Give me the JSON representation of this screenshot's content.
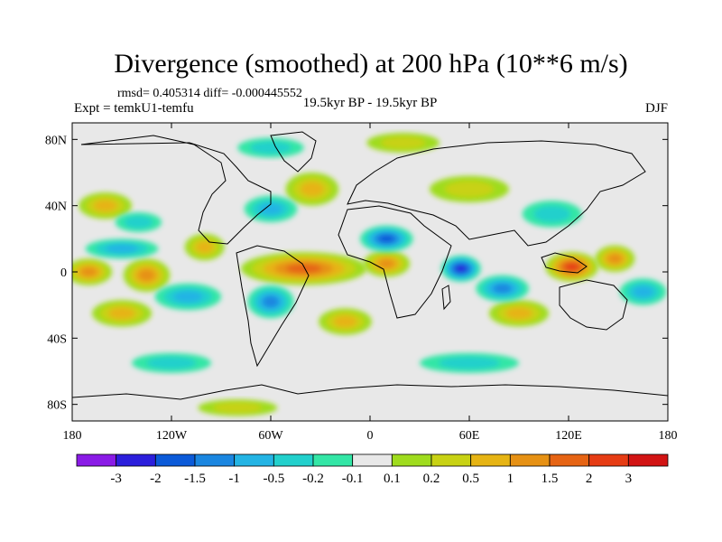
{
  "chart_data": {
    "type": "heatmap",
    "title": "Divergence (smoothed) at 200 hPa (10**6 m/s)",
    "stats": "rmsd= 0.405314 diff= -0.000445552",
    "experiment": "Expt = temkU1-temfu",
    "period": "19.5kyr BP - 19.5kyr BP",
    "season": "DJF",
    "x_range": [
      -180,
      180
    ],
    "y_range": [
      -90,
      90
    ],
    "x_ticks": [
      {
        "value": -180,
        "label": "180"
      },
      {
        "value": -120,
        "label": "120W"
      },
      {
        "value": -60,
        "label": "60W"
      },
      {
        "value": 0,
        "label": "0"
      },
      {
        "value": 60,
        "label": "60E"
      },
      {
        "value": 120,
        "label": "120E"
      },
      {
        "value": 180,
        "label": "180"
      }
    ],
    "y_ticks": [
      {
        "value": 80,
        "label": "80N"
      },
      {
        "value": 40,
        "label": "40N"
      },
      {
        "value": 0,
        "label": "0"
      },
      {
        "value": -40,
        "label": "40S"
      },
      {
        "value": -80,
        "label": "80S"
      }
    ],
    "colorbar": {
      "levels": [
        "-3",
        "-2",
        "-1.5",
        "-1",
        "-0.5",
        "-0.2",
        "-0.1",
        "0.1",
        "0.2",
        "0.5",
        "1",
        "1.5",
        "2",
        "3"
      ],
      "colors": [
        "#8a1be6",
        "#2c1fdc",
        "#0b5ad8",
        "#1a86e0",
        "#24b4e4",
        "#22d0cc",
        "#33e6a6",
        "#e8e8e8",
        "#9fdc1e",
        "#c8d214",
        "#e6b414",
        "#e69114",
        "#e66414",
        "#e63c14",
        "#d21414"
      ]
    },
    "features": [
      {
        "name": "trop-atlantic-pos",
        "lon": -40,
        "lat": 2,
        "rx": 38,
        "ry": 10,
        "value": 1.5
      },
      {
        "name": "gulf-guinea-pos",
        "lon": 10,
        "lat": 5,
        "rx": 14,
        "ry": 8,
        "value": 1.2
      },
      {
        "name": "maritime-continent-pos",
        "lon": 122,
        "lat": 3,
        "rx": 16,
        "ry": 9,
        "value": 2.0
      },
      {
        "name": "west-pacific-pos",
        "lon": 148,
        "lat": 8,
        "rx": 12,
        "ry": 8,
        "value": 1.0
      },
      {
        "name": "central-pacific-pos",
        "lon": -170,
        "lat": 0,
        "rx": 14,
        "ry": 8,
        "value": 1.0
      },
      {
        "name": "east-pacific-pos",
        "lon": -135,
        "lat": -2,
        "rx": 14,
        "ry": 10,
        "value": 1.2
      },
      {
        "name": "mexico-pos",
        "lon": -100,
        "lat": 15,
        "rx": 12,
        "ry": 8,
        "value": 0.8
      },
      {
        "name": "south-pacific-pos",
        "lon": -150,
        "lat": -25,
        "rx": 18,
        "ry": 8,
        "value": 0.6
      },
      {
        "name": "south-atlantic-pos",
        "lon": -15,
        "lat": -30,
        "rx": 16,
        "ry": 8,
        "value": 0.6
      },
      {
        "name": "south-indian-pos",
        "lon": 90,
        "lat": -25,
        "rx": 18,
        "ry": 8,
        "value": 0.6
      },
      {
        "name": "north-pacific-pos",
        "lon": -160,
        "lat": 40,
        "rx": 16,
        "ry": 8,
        "value": 0.5
      },
      {
        "name": "north-atlantic-pos",
        "lon": -35,
        "lat": 50,
        "rx": 16,
        "ry": 10,
        "value": 0.6
      },
      {
        "name": "eurasia-pos",
        "lon": 60,
        "lat": 50,
        "rx": 24,
        "ry": 8,
        "value": 0.4
      },
      {
        "name": "arctic-pos",
        "lon": 20,
        "lat": 78,
        "rx": 22,
        "ry": 6,
        "value": 0.3
      },
      {
        "name": "antarctic-pos",
        "lon": -80,
        "lat": -82,
        "rx": 24,
        "ry": 5,
        "value": 0.3
      },
      {
        "name": "north-africa-neg",
        "lon": 10,
        "lat": 20,
        "rx": 16,
        "ry": 8,
        "value": -1.5
      },
      {
        "name": "east-africa-neg",
        "lon": 55,
        "lat": 2,
        "rx": 12,
        "ry": 8,
        "value": -2.0
      },
      {
        "name": "indian-ocean-neg",
        "lon": 80,
        "lat": -10,
        "rx": 16,
        "ry": 8,
        "value": -1.0
      },
      {
        "name": "tropical-pacific-neg",
        "lon": -150,
        "lat": 14,
        "rx": 22,
        "ry": 6,
        "value": -0.8
      },
      {
        "name": "south-america-neg",
        "lon": -60,
        "lat": -18,
        "rx": 14,
        "ry": 10,
        "value": -1.0
      },
      {
        "name": "south-pacific-neg",
        "lon": -110,
        "lat": -15,
        "rx": 20,
        "ry": 8,
        "value": -0.6
      },
      {
        "name": "spcz-neg",
        "lon": 165,
        "lat": -12,
        "rx": 14,
        "ry": 8,
        "value": -0.8
      },
      {
        "name": "north-pacific-neg",
        "lon": -140,
        "lat": 30,
        "rx": 14,
        "ry": 6,
        "value": -0.4
      },
      {
        "name": "north-atlantic-neg",
        "lon": -60,
        "lat": 38,
        "rx": 16,
        "ry": 8,
        "value": -0.5
      },
      {
        "name": "asia-neg",
        "lon": 110,
        "lat": 35,
        "rx": 18,
        "ry": 8,
        "value": -0.4
      },
      {
        "name": "arctic-neg",
        "lon": -60,
        "lat": 75,
        "rx": 20,
        "ry": 6,
        "value": -0.3
      },
      {
        "name": "southern-ocean-neg",
        "lon": 60,
        "lat": -55,
        "rx": 30,
        "ry": 6,
        "value": -0.3
      },
      {
        "name": "southern-pacific-neg",
        "lon": -120,
        "lat": -55,
        "rx": 24,
        "ry": 6,
        "value": -0.3
      }
    ]
  }
}
